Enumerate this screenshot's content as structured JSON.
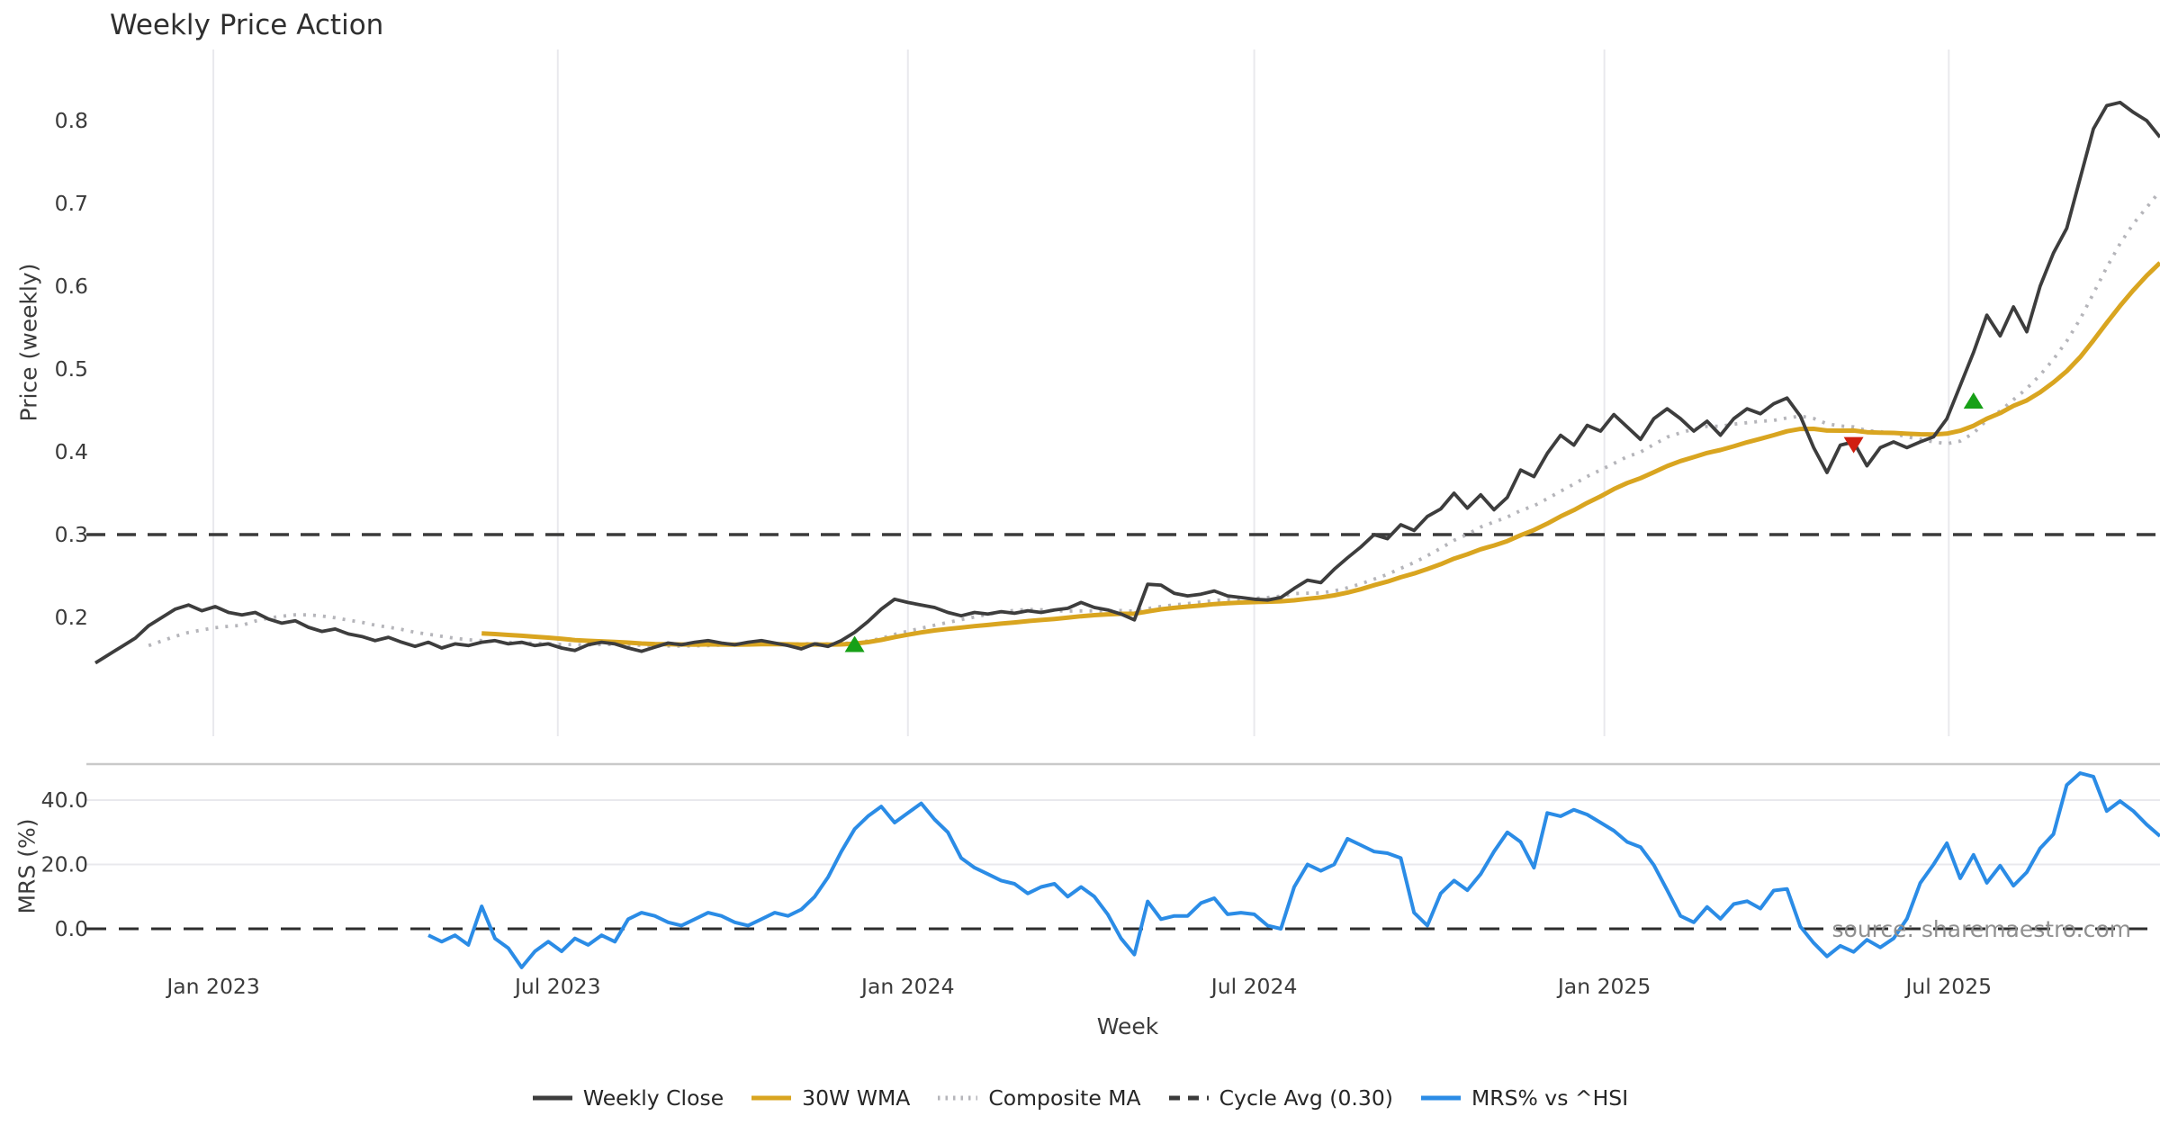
{
  "page": {
    "title": "Weekly Price Action",
    "watermark": "source: sharemaestro.com"
  },
  "chart_data": {
    "type": "line",
    "title": "Weekly Price Action",
    "xlabel": "Week",
    "x_frequency": "weekly",
    "x_start_date": "2022-10-31",
    "x_ticks": [
      {
        "label": "Jan 2023",
        "week": 8.857
      },
      {
        "label": "Jul 2023",
        "week": 34.714
      },
      {
        "label": "Jan 2024",
        "week": 61.0
      },
      {
        "label": "Jul 2024",
        "week": 87.0
      },
      {
        "label": "Jan 2025",
        "week": 113.286
      },
      {
        "label": "Jul 2025",
        "week": 139.143
      }
    ],
    "panels": [
      {
        "ylabel": "Price (weekly)",
        "yticks": [
          0.8,
          0.7,
          0.6,
          0.5,
          0.4,
          0.3,
          0.2
        ],
        "ylim": [
          0.09,
          0.885
        ],
        "grid": "vertical"
      },
      {
        "ylabel": "MRS (%)",
        "yticks": [
          40.0,
          20.0,
          0.0
        ],
        "ylim": [
          -13.4,
          51.2
        ],
        "grid": "horizontal",
        "zero_line": "dashed"
      }
    ],
    "cycle_avg": 0.3,
    "legend_position": "bottom-center",
    "legend": [
      {
        "label": "Weekly Close",
        "color": "#3d3d3d",
        "style": "solid"
      },
      {
        "label": "30W WMA",
        "color": "#d9a520",
        "style": "solid"
      },
      {
        "label": "Composite MA",
        "color": "#b5b5ba",
        "style": "dotted"
      },
      {
        "label": "Cycle Avg (0.30)",
        "color": "#3a3a3a",
        "style": "dashed"
      },
      {
        "label": "MRS% vs ^HSI",
        "color": "#2b8ce6",
        "style": "solid"
      }
    ],
    "series": {
      "weekly_close": {
        "name": "Weekly Close",
        "values": [
          0.145,
          0.155,
          0.165,
          0.175,
          0.19,
          0.2,
          0.21,
          0.215,
          0.208,
          0.213,
          0.206,
          0.203,
          0.206,
          0.198,
          0.193,
          0.196,
          0.188,
          0.183,
          0.186,
          0.18,
          0.177,
          0.172,
          0.176,
          0.17,
          0.165,
          0.17,
          0.163,
          0.168,
          0.166,
          0.17,
          0.172,
          0.168,
          0.17,
          0.166,
          0.168,
          0.163,
          0.16,
          0.167,
          0.17,
          0.168,
          0.163,
          0.159,
          0.164,
          0.169,
          0.167,
          0.17,
          0.172,
          0.169,
          0.167,
          0.17,
          0.172,
          0.169,
          0.166,
          0.162,
          0.168,
          0.165,
          0.172,
          0.182,
          0.195,
          0.21,
          0.222,
          0.218,
          0.215,
          0.212,
          0.206,
          0.202,
          0.206,
          0.204,
          0.207,
          0.205,
          0.208,
          0.206,
          0.209,
          0.211,
          0.218,
          0.212,
          0.209,
          0.204,
          0.197,
          0.24,
          0.239,
          0.229,
          0.226,
          0.228,
          0.232,
          0.226,
          0.224,
          0.222,
          0.221,
          0.224,
          0.235,
          0.245,
          0.242,
          0.258,
          0.272,
          0.285,
          0.3,
          0.295,
          0.312,
          0.305,
          0.322,
          0.331,
          0.35,
          0.332,
          0.348,
          0.33,
          0.345,
          0.378,
          0.37,
          0.398,
          0.42,
          0.408,
          0.432,
          0.425,
          0.445,
          0.43,
          0.415,
          0.44,
          0.452,
          0.44,
          0.425,
          0.437,
          0.42,
          0.44,
          0.452,
          0.446,
          0.458,
          0.465,
          0.443,
          0.405,
          0.375,
          0.408,
          0.412,
          0.383,
          0.405,
          0.412,
          0.405,
          0.412,
          0.418,
          0.44,
          0.48,
          0.52,
          0.565,
          0.54,
          0.575,
          0.545,
          0.6,
          0.64,
          0.67,
          0.73,
          0.79,
          0.818,
          0.822,
          0.81,
          0.8,
          0.78
        ]
      },
      "wma_30w": {
        "name": "30W WMA",
        "derived_from": "weekly_close",
        "method": "linear-weighted moving average",
        "window": 30
      },
      "composite_ma": {
        "name": "Composite MA",
        "derived_from": "weekly_close",
        "method": "rolling mean",
        "window": 12,
        "min_periods": 5
      },
      "mrs_pct_vs_hsi": {
        "name": "MRS% vs ^HSI",
        "start_week": 25,
        "values": [
          -2,
          -4,
          -2,
          -5,
          7,
          -3,
          -6,
          -12,
          -7,
          -4,
          -7,
          -3,
          -5,
          -2,
          -4,
          3,
          5,
          4,
          2,
          1,
          3,
          5,
          4,
          2,
          1,
          3,
          5,
          4,
          6,
          10,
          16,
          24,
          31,
          35,
          38,
          33,
          36,
          39,
          34,
          30,
          22,
          19,
          17,
          15,
          14,
          11,
          13,
          14,
          10,
          13,
          10,
          4.5,
          -3,
          -8,
          8.5,
          3,
          4,
          4,
          8,
          9.5,
          4.5,
          5,
          4.5,
          1,
          0,
          13,
          20,
          18,
          20,
          28,
          26,
          24,
          23.5,
          22,
          5,
          1,
          11,
          15,
          12,
          17,
          24,
          30,
          27,
          19,
          36,
          35,
          37,
          35.5,
          33,
          30.5,
          27,
          25.4,
          19.8,
          12,
          4,
          2,
          6.8,
          3.1,
          7.7,
          8.6,
          6.3,
          11.9,
          12.4,
          0.7,
          -4.4,
          -8.6,
          -5.3,
          -7.2,
          -3.4,
          -5.8,
          -3,
          3.1,
          14.2,
          20,
          26.6,
          15.7,
          23,
          14.3,
          19.6,
          13.4,
          17.6,
          25,
          29.4,
          44.7,
          48.4,
          47.3,
          36.6,
          39.7,
          36.6,
          32.4,
          28.8
        ]
      }
    },
    "buy_signals": [
      {
        "week": 57,
        "price": 0.168
      },
      {
        "week": 141,
        "price": 0.462
      }
    ],
    "sell_signals": [
      {
        "week": 132,
        "price": 0.408
      }
    ],
    "colors": {
      "weekly_close": "#3d3d3d",
      "wma": "#d9a520",
      "composite": "#b5b5ba",
      "cycle_avg": "#3a3a3a",
      "mrs": "#2b8ce6",
      "buy_marker": "#17a017",
      "sell_marker": "#d01f10",
      "grid": "#e9e9ed",
      "panel_border": "#c9c9c9"
    }
  }
}
